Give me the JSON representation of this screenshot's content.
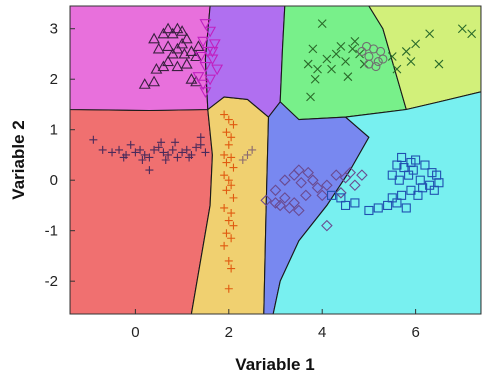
{
  "chart_data": {
    "type": "scatter",
    "xlabel": "Variable 1",
    "ylabel": "Variable 2",
    "xlim": [
      -1.4,
      7.4
    ],
    "ylim": [
      -2.65,
      3.45
    ],
    "xticks": [
      "0",
      "2",
      "4",
      "6"
    ],
    "yticks": [
      "-2",
      "-1",
      "0",
      "1",
      "2",
      "3"
    ],
    "regions": [
      {
        "color": "#f07070",
        "boundary": [
          [
            -1.4,
            1.4
          ],
          [
            0.3,
            1.38
          ],
          [
            1.55,
            1.4
          ],
          [
            1.65,
            0.5
          ],
          [
            1.6,
            -0.5
          ],
          [
            1.2,
            -2.65
          ],
          [
            -1.4,
            -2.65
          ]
        ]
      },
      {
        "color": "#f0d070",
        "boundary": [
          [
            1.55,
            1.4
          ],
          [
            1.9,
            1.65
          ],
          [
            2.4,
            1.6
          ],
          [
            2.85,
            1.25
          ],
          [
            2.8,
            -0.5
          ],
          [
            2.75,
            -2.65
          ],
          [
            1.2,
            -2.65
          ],
          [
            1.6,
            -0.5
          ],
          [
            1.65,
            0.5
          ]
        ]
      },
      {
        "color": "#e870dc",
        "boundary": [
          [
            -1.4,
            1.4
          ],
          [
            0.3,
            1.38
          ],
          [
            1.55,
            1.4
          ],
          [
            1.5,
            2.4
          ],
          [
            1.6,
            3.45
          ],
          [
            -1.4,
            3.45
          ]
        ]
      },
      {
        "color": "#b06ff0",
        "boundary": [
          [
            1.6,
            3.45
          ],
          [
            3.2,
            3.45
          ],
          [
            3.15,
            2.6
          ],
          [
            3.1,
            1.55
          ],
          [
            2.85,
            1.25
          ],
          [
            2.4,
            1.6
          ],
          [
            1.9,
            1.65
          ],
          [
            1.55,
            1.4
          ],
          [
            1.5,
            2.4
          ]
        ]
      },
      {
        "color": "#78f08a",
        "boundary": [
          [
            3.2,
            3.45
          ],
          [
            5.0,
            3.45
          ],
          [
            5.3,
            3.0
          ],
          [
            5.55,
            2.2
          ],
          [
            5.8,
            1.4
          ],
          [
            4.5,
            1.25
          ],
          [
            3.5,
            1.2
          ],
          [
            3.1,
            1.55
          ],
          [
            3.15,
            2.6
          ]
        ]
      },
      {
        "color": "#d2f07a",
        "boundary": [
          [
            5.0,
            3.45
          ],
          [
            7.4,
            3.45
          ],
          [
            7.4,
            1.75
          ],
          [
            6.5,
            1.55
          ],
          [
            5.8,
            1.4
          ],
          [
            5.55,
            2.2
          ],
          [
            5.3,
            3.0
          ]
        ]
      },
      {
        "color": "#7888f0",
        "boundary": [
          [
            2.85,
            1.25
          ],
          [
            3.1,
            1.55
          ],
          [
            3.5,
            1.2
          ],
          [
            4.5,
            1.25
          ],
          [
            5.0,
            0.85
          ],
          [
            4.6,
            0.2
          ],
          [
            4.1,
            -0.5
          ],
          [
            3.5,
            -1.2
          ],
          [
            3.1,
            -2.0
          ],
          [
            2.95,
            -2.65
          ],
          [
            2.75,
            -2.65
          ],
          [
            2.8,
            -0.5
          ]
        ]
      },
      {
        "color": "#78f0f0",
        "boundary": [
          [
            4.5,
            1.25
          ],
          [
            5.8,
            1.4
          ],
          [
            6.5,
            1.55
          ],
          [
            7.4,
            1.75
          ],
          [
            7.4,
            -2.65
          ],
          [
            2.95,
            -2.65
          ],
          [
            3.1,
            -2.0
          ],
          [
            3.5,
            -1.2
          ],
          [
            4.1,
            -0.5
          ],
          [
            4.6,
            0.2
          ],
          [
            5.0,
            0.85
          ]
        ]
      }
    ],
    "series": [
      {
        "marker": "plus",
        "color": "#4a2a5a",
        "points": [
          [
            -0.9,
            0.8
          ],
          [
            -0.7,
            0.6
          ],
          [
            -0.5,
            0.55
          ],
          [
            -0.35,
            0.6
          ],
          [
            -0.2,
            0.5
          ],
          [
            -0.1,
            0.7
          ],
          [
            0.0,
            0.55
          ],
          [
            0.1,
            0.6
          ],
          [
            0.2,
            0.5
          ],
          [
            0.3,
            0.45
          ],
          [
            0.4,
            0.6
          ],
          [
            0.5,
            0.65
          ],
          [
            0.6,
            0.55
          ],
          [
            0.7,
            0.5
          ],
          [
            0.8,
            0.6
          ],
          [
            0.9,
            0.45
          ],
          [
            1.0,
            0.55
          ],
          [
            1.1,
            0.6
          ],
          [
            1.2,
            0.5
          ],
          [
            1.3,
            0.65
          ],
          [
            1.4,
            0.7
          ],
          [
            1.5,
            0.55
          ],
          [
            0.3,
            0.2
          ],
          [
            0.55,
            0.75
          ],
          [
            0.85,
            0.75
          ],
          [
            1.15,
            0.45
          ],
          [
            -0.25,
            0.45
          ],
          [
            0.15,
            0.4
          ],
          [
            0.65,
            0.4
          ],
          [
            1.4,
            0.85
          ]
        ]
      },
      {
        "marker": "plus",
        "color": "#e05a10",
        "points": [
          [
            1.9,
            1.3
          ],
          [
            2.0,
            1.2
          ],
          [
            2.1,
            1.1
          ],
          [
            1.95,
            0.95
          ],
          [
            2.05,
            0.85
          ],
          [
            2.0,
            0.7
          ],
          [
            1.9,
            0.5
          ],
          [
            2.05,
            0.45
          ],
          [
            1.95,
            0.35
          ],
          [
            2.1,
            0.25
          ],
          [
            1.9,
            0.1
          ],
          [
            2.0,
            0.0
          ],
          [
            2.05,
            -0.1
          ],
          [
            1.95,
            -0.2
          ],
          [
            2.1,
            -0.35
          ],
          [
            1.9,
            -0.55
          ],
          [
            2.05,
            -0.65
          ],
          [
            2.0,
            -0.8
          ],
          [
            2.1,
            -0.9
          ],
          [
            1.95,
            -1.05
          ],
          [
            2.05,
            -1.15
          ],
          [
            1.9,
            -1.3
          ],
          [
            2.0,
            -1.6
          ],
          [
            2.05,
            -1.75
          ],
          [
            2.0,
            -2.15
          ]
        ]
      },
      {
        "marker": "plus",
        "color": "#8a6a70",
        "points": [
          [
            2.3,
            0.4
          ],
          [
            2.5,
            0.6
          ],
          [
            2.4,
            0.5
          ]
        ]
      },
      {
        "marker": "triangle-up",
        "color": "#3a2040",
        "points": [
          [
            0.4,
            2.8
          ],
          [
            0.6,
            2.9
          ],
          [
            0.7,
            3.0
          ],
          [
            0.8,
            2.9
          ],
          [
            0.9,
            3.0
          ],
          [
            1.0,
            2.95
          ],
          [
            1.1,
            2.8
          ],
          [
            0.5,
            2.6
          ],
          [
            0.7,
            2.65
          ],
          [
            0.8,
            2.5
          ],
          [
            0.9,
            2.6
          ],
          [
            1.0,
            2.7
          ],
          [
            1.2,
            2.55
          ],
          [
            1.3,
            2.45
          ],
          [
            1.1,
            2.3
          ],
          [
            0.9,
            2.25
          ],
          [
            0.7,
            2.35
          ],
          [
            0.6,
            2.25
          ],
          [
            0.45,
            2.2
          ],
          [
            1.2,
            2.0
          ],
          [
            1.3,
            1.95
          ],
          [
            0.2,
            1.9
          ],
          [
            0.4,
            1.95
          ],
          [
            1.05,
            2.5
          ],
          [
            1.35,
            2.65
          ]
        ]
      },
      {
        "marker": "triangle-down",
        "color": "#c020c0",
        "points": [
          [
            1.5,
            3.1
          ],
          [
            1.6,
            2.95
          ],
          [
            1.45,
            2.75
          ],
          [
            1.7,
            2.7
          ],
          [
            1.55,
            2.55
          ],
          [
            1.4,
            2.45
          ],
          [
            1.65,
            2.4
          ],
          [
            1.5,
            2.25
          ],
          [
            1.75,
            2.2
          ],
          [
            1.35,
            2.05
          ],
          [
            1.6,
            2.0
          ],
          [
            1.45,
            1.9
          ],
          [
            1.5,
            1.75
          ],
          [
            1.65,
            2.55
          ]
        ]
      },
      {
        "marker": "x",
        "color": "#2a6a2a",
        "points": [
          [
            4.0,
            3.1
          ],
          [
            3.8,
            2.6
          ],
          [
            3.9,
            2.2
          ],
          [
            4.1,
            2.4
          ],
          [
            3.7,
            2.3
          ],
          [
            3.85,
            2.0
          ],
          [
            4.2,
            2.2
          ],
          [
            4.3,
            2.5
          ],
          [
            4.4,
            2.65
          ],
          [
            4.5,
            2.35
          ],
          [
            4.55,
            2.05
          ],
          [
            4.65,
            2.6
          ],
          [
            4.7,
            2.75
          ],
          [
            4.8,
            2.5
          ],
          [
            4.9,
            2.3
          ],
          [
            5.5,
            2.45
          ],
          [
            5.6,
            2.2
          ],
          [
            5.8,
            2.55
          ],
          [
            5.9,
            2.35
          ],
          [
            6.0,
            2.7
          ],
          [
            6.3,
            2.9
          ],
          [
            6.5,
            2.3
          ],
          [
            7.0,
            3.0
          ],
          [
            7.2,
            2.9
          ],
          [
            3.75,
            1.65
          ]
        ]
      },
      {
        "marker": "circle",
        "color": "#707070",
        "points": [
          [
            4.85,
            2.55
          ],
          [
            5.0,
            2.45
          ],
          [
            5.1,
            2.6
          ],
          [
            5.2,
            2.35
          ],
          [
            5.0,
            2.3
          ],
          [
            4.95,
            2.65
          ],
          [
            5.25,
            2.55
          ],
          [
            5.3,
            2.4
          ],
          [
            5.15,
            2.25
          ]
        ]
      },
      {
        "marker": "diamond",
        "color": "#6a4a90",
        "points": [
          [
            2.8,
            -0.4
          ],
          [
            3.0,
            -0.45
          ],
          [
            3.1,
            -0.5
          ],
          [
            3.2,
            -0.35
          ],
          [
            3.0,
            -0.2
          ],
          [
            3.3,
            -0.55
          ],
          [
            3.4,
            -0.45
          ],
          [
            3.5,
            -0.6
          ],
          [
            3.2,
            0.0
          ],
          [
            3.4,
            0.1
          ],
          [
            3.55,
            -0.05
          ],
          [
            3.7,
            0.15
          ],
          [
            3.8,
            0.0
          ],
          [
            3.65,
            -0.3
          ],
          [
            3.9,
            -0.15
          ],
          [
            4.0,
            -0.3
          ],
          [
            4.1,
            -0.1
          ],
          [
            4.3,
            0.1
          ],
          [
            4.4,
            -0.25
          ],
          [
            4.5,
            0.05
          ],
          [
            4.6,
            0.15
          ],
          [
            4.7,
            -0.1
          ],
          [
            4.85,
            0.1
          ],
          [
            3.5,
            0.2
          ],
          [
            4.1,
            -0.9
          ]
        ]
      },
      {
        "marker": "square",
        "color": "#2050b0",
        "points": [
          [
            4.2,
            -0.3
          ],
          [
            4.4,
            -0.35
          ],
          [
            4.5,
            -0.5
          ],
          [
            4.7,
            -0.45
          ],
          [
            5.0,
            -0.6
          ],
          [
            5.2,
            -0.55
          ],
          [
            5.4,
            -0.5
          ],
          [
            5.6,
            -0.45
          ],
          [
            5.8,
            -0.55
          ],
          [
            5.5,
            -0.35
          ],
          [
            5.7,
            -0.3
          ],
          [
            5.9,
            -0.2
          ],
          [
            5.5,
            0.1
          ],
          [
            5.6,
            0.3
          ],
          [
            5.7,
            0.45
          ],
          [
            5.75,
            0.25
          ],
          [
            5.85,
            0.1
          ],
          [
            5.9,
            0.35
          ],
          [
            5.95,
            0.2
          ],
          [
            6.0,
            0.4
          ],
          [
            6.1,
            0.0
          ],
          [
            6.2,
            0.3
          ],
          [
            6.3,
            -0.1
          ],
          [
            6.35,
            0.15
          ],
          [
            6.4,
            -0.2
          ],
          [
            6.45,
            0.1
          ],
          [
            6.5,
            -0.05
          ],
          [
            6.15,
            -0.15
          ],
          [
            5.65,
            0.0
          ],
          [
            6.05,
            -0.3
          ]
        ]
      }
    ]
  }
}
